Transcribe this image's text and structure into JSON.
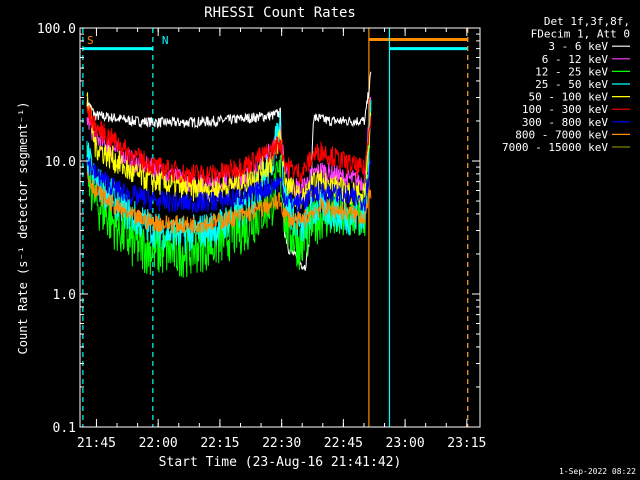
{
  "chart_data": {
    "type": "line",
    "title": "RHESSI Count Rates",
    "xlabel": "Start Time (23-Aug-16 21:41:42)",
    "ylabel": "Count Rate (s⁻¹ detector segment⁻¹)",
    "y_scale": "log",
    "ylim": [
      0.1,
      100.0
    ],
    "xlim_minutes": [
      -0.7,
      96.5
    ],
    "y_ticks": [
      "0.1",
      "1.0",
      "10.0",
      "100.0"
    ],
    "x_ticks": [
      {
        "minute": 3.3,
        "label": "21:45"
      },
      {
        "minute": 18.3,
        "label": "22:00"
      },
      {
        "minute": 33.3,
        "label": "22:15"
      },
      {
        "minute": 48.3,
        "label": "22:30"
      },
      {
        "minute": 63.3,
        "label": "22:45"
      },
      {
        "minute": 78.3,
        "label": "23:00"
      },
      {
        "minute": 93.3,
        "label": "23:15"
      }
    ],
    "legend_header": [
      "Det 1f,3f,8f,",
      "FDecim 1, Att 0"
    ],
    "legend_position": "top-right",
    "series": [
      {
        "name": "3 - 6 keV",
        "color": "#ffffff",
        "x": [
          1,
          3,
          8,
          12,
          18,
          25,
          33,
          40,
          46,
          48,
          49,
          50,
          53,
          54,
          55,
          56,
          57,
          60,
          63,
          66,
          68.5,
          70
        ],
        "y": [
          28,
          22,
          21,
          20,
          19.5,
          19.5,
          20,
          21,
          22,
          23,
          3,
          2.2,
          1.7,
          1.6,
          2.5,
          21,
          21,
          20,
          20,
          20,
          20,
          45
        ]
      },
      {
        "name": "6 - 12 keV",
        "color": "#ff40ff",
        "x": [
          1,
          3,
          8,
          12,
          18,
          25,
          33,
          40,
          46,
          48,
          49,
          50,
          53,
          56,
          58,
          63,
          68.5,
          70
        ],
        "y": [
          21,
          15,
          12,
          10,
          8.5,
          7,
          7,
          8,
          12,
          17,
          9,
          7,
          6,
          8,
          8.5,
          7.5,
          7,
          30
        ]
      },
      {
        "name": "12 - 25 keV",
        "color": "#00ff00",
        "x": [
          1,
          3,
          8,
          12,
          18,
          25,
          33,
          40,
          46,
          48,
          49,
          50,
          53,
          56,
          58,
          63,
          68.5,
          70
        ],
        "y": [
          9,
          5,
          3.3,
          2.4,
          2.1,
          2.1,
          2.5,
          3.3,
          5,
          8,
          4,
          3,
          2.3,
          3.5,
          4,
          3.7,
          4,
          22
        ]
      },
      {
        "name": "25 - 50 keV",
        "color": "#00ffff",
        "x": [
          1,
          3,
          8,
          12,
          18,
          25,
          33,
          40,
          46,
          48,
          49,
          50,
          53,
          56,
          58,
          63,
          68.5,
          70
        ],
        "y": [
          11,
          7,
          5,
          3.8,
          3,
          2.8,
          3.2,
          4.5,
          10,
          20,
          6,
          4.5,
          3,
          4.2,
          4.5,
          3.8,
          3.8,
          25
        ]
      },
      {
        "name": "50 - 100 keV",
        "color": "#ffff00",
        "x": [
          1,
          3,
          8,
          12,
          18,
          25,
          33,
          40,
          46,
          48,
          49,
          50,
          53,
          56,
          58,
          63,
          68.5,
          70
        ],
        "y": [
          30,
          13,
          10,
          8,
          7,
          6.2,
          6.2,
          7,
          10,
          16,
          8,
          6.5,
          5,
          6.5,
          7,
          6,
          5.5,
          22
        ]
      },
      {
        "name": "100 - 300 keV",
        "color": "#ff0000",
        "x": [
          1,
          3,
          8,
          12,
          18,
          25,
          33,
          40,
          46,
          48,
          49,
          50,
          53,
          56,
          58,
          63,
          68.5,
          70
        ],
        "y": [
          24,
          18,
          14,
          11,
          9,
          8,
          8,
          9.5,
          12,
          14,
          10,
          9,
          8,
          11,
          12,
          10,
          8.5,
          24
        ]
      },
      {
        "name": "300 - 800 keV",
        "color": "#0000ff",
        "x": [
          1,
          3,
          8,
          12,
          18,
          25,
          33,
          40,
          46,
          48,
          49,
          50,
          53,
          56,
          58,
          63,
          68.5,
          70
        ],
        "y": [
          10,
          8,
          6.2,
          5.5,
          5,
          4.8,
          5,
          5.5,
          6.5,
          7,
          5.5,
          5,
          4.8,
          5.7,
          6,
          5.5,
          5,
          10
        ]
      },
      {
        "name": "800 - 7000 keV",
        "color": "#ff8c00",
        "x": [
          1,
          3,
          8,
          12,
          18,
          25,
          33,
          40,
          46,
          48,
          49,
          50,
          53,
          56,
          58,
          63,
          68.5,
          70
        ],
        "y": [
          8,
          6,
          4.5,
          3.8,
          3.4,
          3.3,
          3.5,
          4,
          4.7,
          5,
          4,
          3.7,
          3.5,
          4.2,
          4.5,
          4.2,
          3.8,
          6
        ]
      },
      {
        "name": "7000 - 15000 keV",
        "color": "#808000",
        "x": [],
        "y": []
      }
    ],
    "annotations": [
      {
        "text": "S",
        "color": "#ff8c00",
        "minute": 1.8
      },
      {
        "text": "N",
        "color": "#00ffff",
        "minute": 20.0
      }
    ],
    "flag_bars": [
      {
        "color": "#00ffff",
        "x_start": 0,
        "x_end": 17,
        "y": 70
      },
      {
        "color": "#ff8c00",
        "x_start": 69.5,
        "x_end": 93.5,
        "y": 82
      },
      {
        "color": "#00ffff",
        "x_start": 74.5,
        "x_end": 93.5,
        "y": 70
      }
    ],
    "vertical_lines": [
      {
        "minute": 0,
        "color": "#00ffff",
        "style": "dashed"
      },
      {
        "minute": 17,
        "color": "#00ffff",
        "style": "dashed"
      },
      {
        "minute": 69.5,
        "color": "#ff8c00",
        "style": "solid"
      },
      {
        "minute": 74.5,
        "color": "#00ffff",
        "style": "solid"
      },
      {
        "minute": 93.5,
        "color": "#00ffff",
        "style": "dashed"
      },
      {
        "minute": 93.5,
        "color": "#ff8c00",
        "style": "dashed"
      }
    ],
    "timestamp": "1-Sep-2022 08:22"
  }
}
